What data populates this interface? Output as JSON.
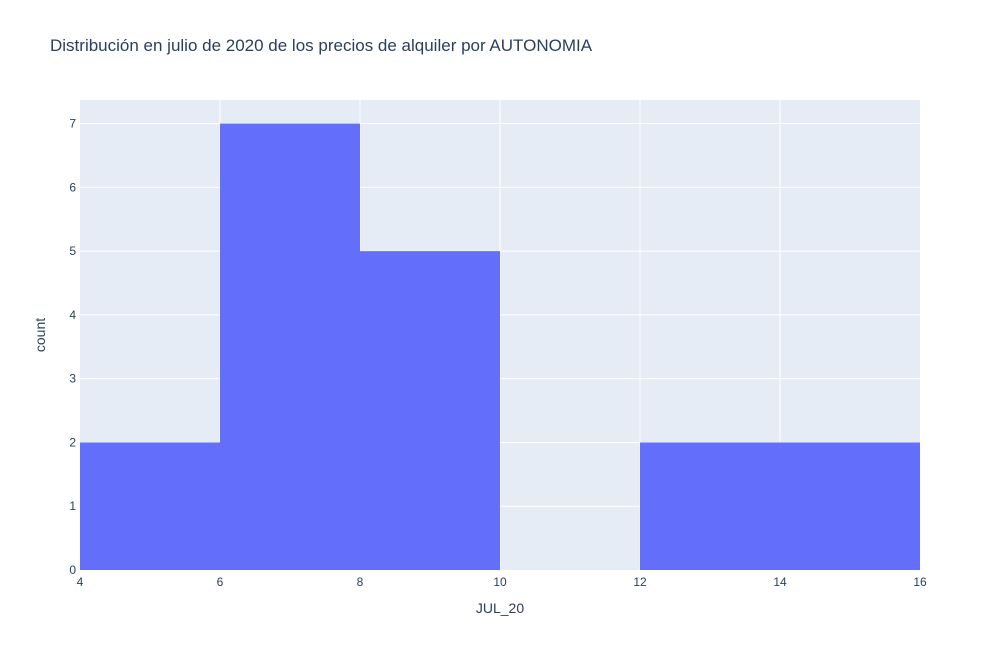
{
  "chart_data": {
    "type": "bar",
    "title": "Distribución en julio de 2020 de los precios de alquiler por AUTONOMIA",
    "xlabel": "JUL_20",
    "ylabel": "count",
    "bins": [
      {
        "start": 4,
        "end": 6,
        "count": 2
      },
      {
        "start": 6,
        "end": 8,
        "count": 7
      },
      {
        "start": 8,
        "end": 10,
        "count": 5
      },
      {
        "start": 10,
        "end": 12,
        "count": 0
      },
      {
        "start": 12,
        "end": 14,
        "count": 2
      },
      {
        "start": 14,
        "end": 16,
        "count": 2
      }
    ],
    "xlim": [
      4,
      16
    ],
    "ylim": [
      0,
      7.37
    ],
    "xticks": [
      4,
      6,
      8,
      10,
      12,
      14,
      16
    ],
    "yticks": [
      0,
      1,
      2,
      3,
      4,
      5,
      6,
      7
    ],
    "grid": true,
    "colors": {
      "bar": "#636efa",
      "plot_bg": "#e5ecf6",
      "grid": "#ffffff",
      "text": "#2a3f5f"
    }
  }
}
